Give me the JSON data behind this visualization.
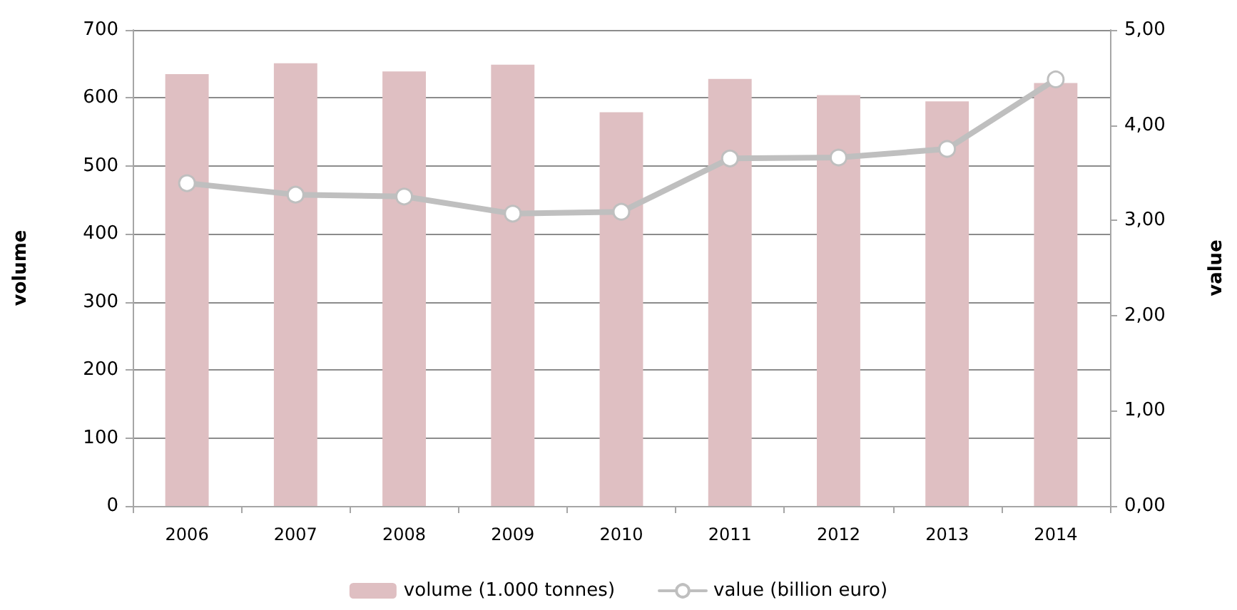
{
  "chart_data": {
    "type": "bar",
    "ylabel": "volume",
    "y2label": "value",
    "categories": [
      "2006",
      "2007",
      "2008",
      "2009",
      "2010",
      "2011",
      "2012",
      "2013",
      "2014"
    ],
    "series": [
      {
        "name": "volume (1.000 tonnes)",
        "color": "#dfbfc2",
        "values": [
          635,
          651,
          639,
          649,
          579,
          628,
          604,
          595,
          622
        ]
      },
      {
        "name": "value (billion euro)",
        "type": "line",
        "axis": "y2",
        "color": "#bfbfbf",
        "marker": "circle",
        "line_style": "solid",
        "values": [
          3.39,
          3.27,
          3.25,
          3.07,
          3.09,
          3.65,
          3.66,
          3.75,
          4.48
        ]
      }
    ],
    "ylim": [
      0,
      700
    ],
    "yticks": [
      0,
      100,
      200,
      300,
      400,
      500,
      600,
      700
    ],
    "y2lim": [
      0,
      5
    ],
    "y2ticks": [
      {
        "value": 0,
        "label": "0,00"
      },
      {
        "value": 1,
        "label": "1,00"
      },
      {
        "value": 2,
        "label": "2,00"
      },
      {
        "value": 3,
        "label": "3,00"
      },
      {
        "value": 4,
        "label": "4,00"
      },
      {
        "value": 5,
        "label": "5,00"
      }
    ],
    "grid": "y",
    "legend": "bottom"
  }
}
